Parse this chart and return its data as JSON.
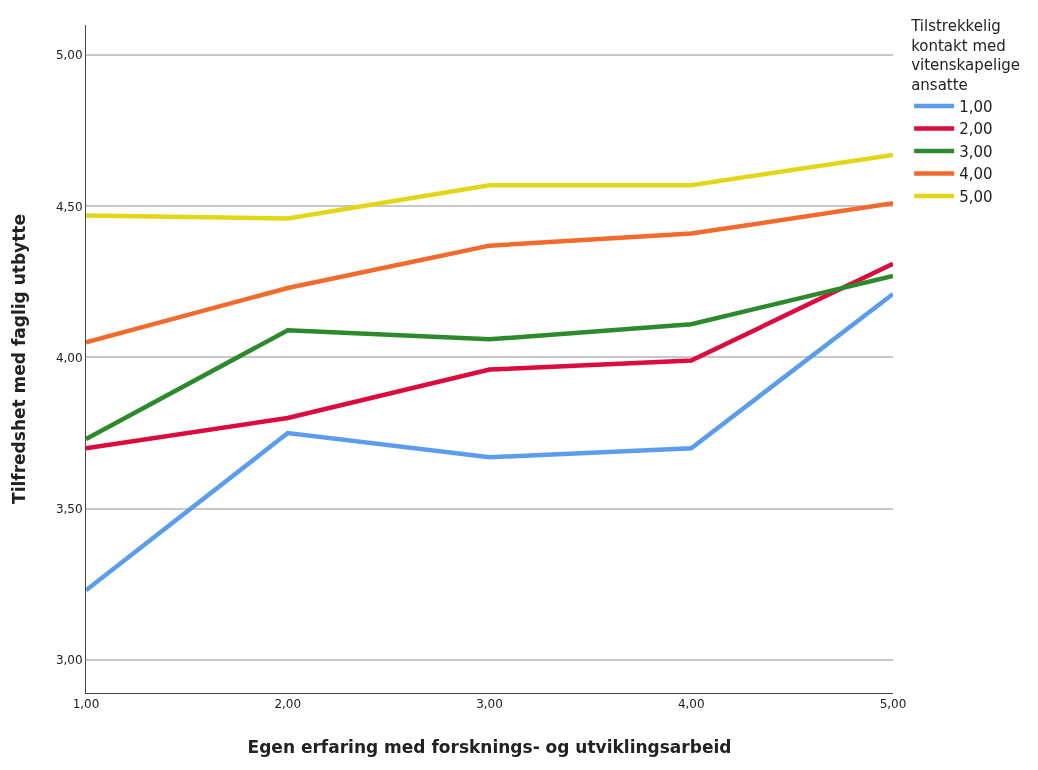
{
  "chart_data": {
    "type": "line",
    "xlabel": "Egen erfaring med forsknings- og utviklingsarbeid",
    "ylabel": "Tilfredshet med faglig utbytte",
    "legend_title": "Tilstrekkelig\nkontakt med\nvitenskapelige\nansatte",
    "categories": [
      "1,00",
      "2,00",
      "3,00",
      "4,00",
      "5,00"
    ],
    "series": [
      {
        "name": "1,00",
        "color": "#5b9ced",
        "values": [
          3.23,
          3.75,
          3.67,
          3.7,
          4.21
        ]
      },
      {
        "name": "2,00",
        "color": "#db0b3f",
        "values": [
          3.7,
          3.8,
          3.96,
          3.99,
          4.31
        ]
      },
      {
        "name": "3,00",
        "color": "#2c8a2c",
        "values": [
          3.73,
          4.09,
          4.06,
          4.11,
          4.27
        ]
      },
      {
        "name": "4,00",
        "color": "#f26b2c",
        "values": [
          4.05,
          4.23,
          4.37,
          4.41,
          4.51
        ]
      },
      {
        "name": "5,00",
        "color": "#e2d618",
        "values": [
          4.47,
          4.46,
          4.57,
          4.57,
          4.67
        ]
      }
    ],
    "ylim": [
      2.89,
      5.1
    ],
    "yticks": [
      {
        "value": 3,
        "label": "3,00"
      },
      {
        "value": 3.5,
        "label": "3,50"
      },
      {
        "value": 4,
        "label": "4,00"
      },
      {
        "value": 4.5,
        "label": "4,50"
      },
      {
        "value": 5,
        "label": "5,00"
      }
    ],
    "grid": "y",
    "legend": "top right",
    "marker": "none",
    "line_style": "solid"
  }
}
